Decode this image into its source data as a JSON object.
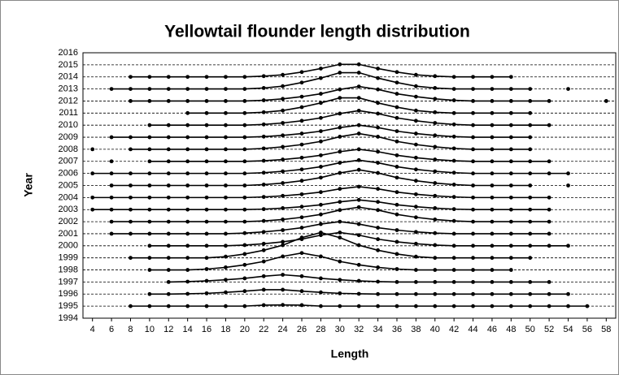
{
  "chart_data": {
    "type": "ridgeline",
    "title": "Yellowtail flounder length distribution",
    "x_label": "Length",
    "y_label": "Year",
    "color": "#000000",
    "grid": true,
    "xlim": [
      3,
      59
    ],
    "ylim": [
      1994,
      2016
    ],
    "xticks": [
      4,
      6,
      8,
      10,
      12,
      14,
      16,
      18,
      20,
      22,
      24,
      26,
      28,
      30,
      32,
      34,
      36,
      38,
      40,
      42,
      44,
      46,
      48,
      50,
      52,
      54,
      56,
      58
    ],
    "yticks": [
      1994,
      1995,
      1996,
      1997,
      1998,
      1999,
      2000,
      2001,
      2002,
      2003,
      2004,
      2005,
      2006,
      2007,
      2008,
      2009,
      2010,
      2011,
      2012,
      2013,
      2014,
      2015,
      2016
    ],
    "x": [
      4,
      6,
      8,
      10,
      12,
      14,
      16,
      18,
      20,
      22,
      24,
      26,
      28,
      30,
      32,
      34,
      36,
      38,
      40,
      42,
      44,
      46,
      48,
      50,
      52,
      54,
      56,
      58
    ],
    "series": [
      {
        "values": [
          null,
          null,
          1995,
          1995,
          1995,
          1995,
          1995,
          1995,
          1995,
          1995.08,
          1995.1,
          1995.08,
          1995,
          1995,
          1995,
          1995,
          1995,
          1995,
          1995,
          1995,
          1995,
          1995,
          1995,
          1995,
          1995,
          1995,
          1995,
          null
        ]
      },
      {
        "values": [
          null,
          null,
          null,
          1996,
          1996,
          1996.02,
          1996.06,
          1996.14,
          1996.24,
          1996.36,
          1996.36,
          1996.24,
          1996.14,
          1996.06,
          1996.02,
          1996,
          1996,
          1996,
          1996,
          1996,
          1996,
          1996,
          1996,
          1996,
          1996,
          1996,
          null,
          null
        ]
      },
      {
        "values": [
          null,
          null,
          null,
          null,
          1997,
          1997.03,
          1997.09,
          1997.18,
          1997.3,
          1997.48,
          1997.6,
          1997.48,
          1997.3,
          1997.18,
          1997.09,
          1997.03,
          1997,
          1997,
          1997,
          1997,
          1997,
          1997,
          1997,
          1997,
          1997,
          null,
          null,
          null
        ]
      },
      {
        "values": [
          null,
          null,
          null,
          1998,
          1998,
          1998,
          1998.07,
          1998.21,
          1998.42,
          1998.7,
          1999.12,
          1999.4,
          1999.12,
          1998.7,
          1998.42,
          1998.21,
          1998.07,
          1998,
          1998,
          1998,
          1998,
          1998,
          1998,
          null,
          null,
          null,
          null,
          null
        ]
      },
      {
        "values": [
          null,
          null,
          1999,
          1999,
          1999,
          1999,
          1999,
          1999.1,
          1999.32,
          1999.63,
          2000.05,
          2000.68,
          2001.1,
          2000.68,
          2000.05,
          1999.63,
          1999.32,
          1999.1,
          1999,
          1999,
          1999,
          1999,
          1999,
          1999,
          null,
          null,
          null,
          null
        ]
      },
      {
        "values": [
          null,
          null,
          null,
          2000,
          2000,
          2000,
          2000,
          2000,
          2000.06,
          2000.17,
          2000.33,
          2000.55,
          2000.88,
          2001.1,
          2000.88,
          2000.55,
          2000.33,
          2000.17,
          2000.06,
          2000,
          2000,
          2000,
          2000,
          2000,
          2000,
          2000,
          null,
          null
        ]
      },
      {
        "values": [
          null,
          2001,
          2001,
          2001,
          2001,
          2001,
          2001,
          2001,
          2001.05,
          2001.15,
          2001.3,
          2001.5,
          2001.8,
          2002,
          2001.8,
          2001.5,
          2001.3,
          2001.15,
          2001.05,
          2001,
          2001,
          2001,
          2001,
          2001,
          2001,
          null,
          null,
          null
        ]
      },
      {
        "values": [
          null,
          2002,
          2002,
          2002,
          2002,
          2002,
          2002,
          2002,
          2002,
          2002.06,
          2002.18,
          2002.36,
          2002.6,
          2002.96,
          2003.2,
          2002.96,
          2002.6,
          2002.36,
          2002.18,
          2002.06,
          2002,
          2002,
          2002,
          2002,
          2002,
          null,
          null,
          null
        ]
      },
      {
        "values": [
          2003,
          2003,
          2003,
          2003,
          2003,
          2003,
          2003,
          2003,
          2003,
          2003.04,
          2003.12,
          2003.24,
          2003.4,
          2003.64,
          2003.8,
          2003.64,
          2003.4,
          2003.24,
          2003.12,
          2003.04,
          2003,
          2003,
          2003,
          2003,
          2003,
          null,
          null,
          null
        ]
      },
      {
        "values": [
          2004,
          2004,
          2004,
          2004,
          2004,
          2004,
          2004,
          2004,
          2004,
          2004.05,
          2004.14,
          2004.27,
          2004.45,
          2004.72,
          2004.9,
          2004.72,
          2004.45,
          2004.27,
          2004.14,
          2004.05,
          2004,
          2004,
          2004,
          2004,
          2004,
          null,
          null,
          null
        ]
      },
      {
        "values": [
          null,
          2005,
          2005,
          2005,
          2005,
          2005,
          2005,
          2005,
          2005,
          2005.07,
          2005.2,
          2005.39,
          2005.65,
          2006.04,
          2006.3,
          2006.04,
          2005.65,
          2005.39,
          2005.2,
          2005.07,
          2005,
          2005,
          2005,
          2005,
          null,
          2005,
          null,
          null
        ]
      },
      {
        "values": [
          2006,
          2006,
          2006,
          2006,
          2006,
          2006,
          2006,
          2006,
          2006,
          2006.06,
          2006.17,
          2006.33,
          2006.55,
          2006.88,
          2007.1,
          2006.88,
          2006.55,
          2006.33,
          2006.17,
          2006.06,
          2006,
          2006,
          2006,
          2006,
          2006,
          2006,
          null,
          null
        ]
      },
      {
        "values": [
          null,
          2007,
          null,
          2007,
          2007,
          2007,
          2007,
          2007,
          2007,
          2007.05,
          2007.15,
          2007.3,
          2007.5,
          2007.8,
          2008,
          2007.8,
          2007.5,
          2007.3,
          2007.15,
          2007.05,
          2007,
          2007,
          2007,
          2007,
          2007,
          null,
          null,
          null
        ]
      },
      {
        "values": [
          2008,
          null,
          2008,
          2008,
          2008,
          2008,
          2008,
          2008,
          2008,
          2008.07,
          2008.2,
          2008.39,
          2008.65,
          2009.04,
          2009.3,
          2009.04,
          2008.65,
          2008.39,
          2008.2,
          2008.07,
          2008,
          2008,
          2008,
          2008,
          null,
          null,
          null,
          null
        ]
      },
      {
        "values": [
          null,
          2009,
          2009,
          2009,
          2009,
          2009,
          2009,
          2009,
          2009,
          2009.05,
          2009.15,
          2009.3,
          2009.5,
          2009.8,
          2010,
          2009.8,
          2009.5,
          2009.3,
          2009.15,
          2009.05,
          2009,
          2009,
          2009,
          2009,
          null,
          null,
          null,
          null
        ]
      },
      {
        "values": [
          null,
          null,
          null,
          2010,
          2010,
          2010,
          2010,
          2010,
          2010,
          2010.06,
          2010.18,
          2010.36,
          2010.6,
          2010.96,
          2011.2,
          2010.96,
          2010.6,
          2010.36,
          2010.18,
          2010.06,
          2010,
          2010,
          2010,
          2010,
          2010,
          null,
          null,
          null
        ]
      },
      {
        "values": [
          null,
          null,
          null,
          null,
          null,
          2011,
          2011,
          2011,
          2011,
          2011.07,
          2011.21,
          2011.49,
          2011.84,
          2012.26,
          2012.26,
          2011.84,
          2011.49,
          2011.21,
          2011.07,
          2011,
          2011,
          2011,
          2011,
          2011,
          null,
          null,
          null,
          null
        ]
      },
      {
        "values": [
          null,
          null,
          2012,
          2012,
          2012,
          2012,
          2012,
          2012,
          2012,
          2012.06,
          2012.18,
          2012.36,
          2012.6,
          2012.96,
          2013.2,
          2012.96,
          2012.6,
          2012.36,
          2012.18,
          2012.06,
          2012,
          2012,
          2012,
          2012,
          2012,
          null,
          null,
          2012
        ]
      },
      {
        "values": [
          null,
          2013,
          2013,
          2013,
          2013,
          2013,
          2013,
          2013,
          2013,
          2013.08,
          2013.23,
          2013.53,
          2013.9,
          2014.35,
          2014.35,
          2013.9,
          2013.53,
          2013.23,
          2013.08,
          2013,
          2013,
          2013,
          2013,
          2013,
          null,
          2013,
          null,
          null
        ]
      },
      {
        "values": [
          null,
          null,
          2014,
          2014,
          2014,
          2014,
          2014,
          2014,
          2014,
          2014.06,
          2014.17,
          2014.4,
          2014.69,
          2015.04,
          2015.04,
          2014.69,
          2014.4,
          2014.17,
          2014.06,
          2014,
          2014,
          2014,
          2014,
          null,
          null,
          null,
          null,
          null
        ]
      }
    ]
  }
}
